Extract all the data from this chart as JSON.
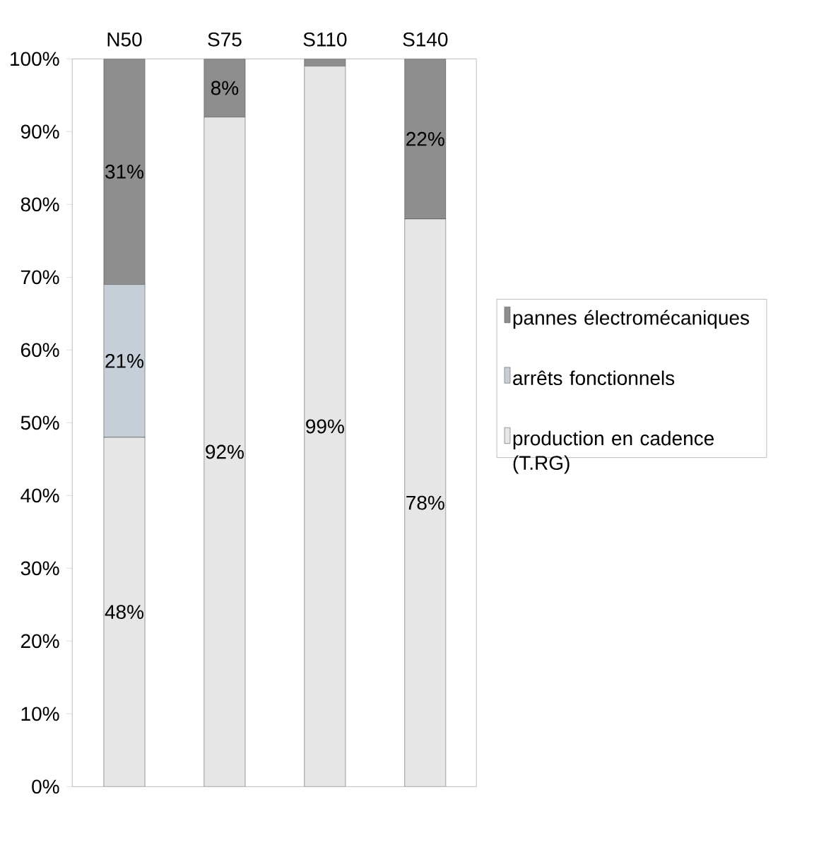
{
  "chart_data": {
    "type": "bar",
    "stacked": true,
    "categories": [
      "N50",
      "S75",
      "S110",
      "S140"
    ],
    "series": [
      {
        "name": "production en cadence (T.RG)",
        "color": "#e6e6e6",
        "values": [
          48,
          92,
          99,
          78
        ],
        "value_labels": [
          "48%",
          "92%",
          "99%",
          "78%"
        ]
      },
      {
        "name": "arrêts fonctionnels",
        "color": "#c6cfd8",
        "values": [
          21,
          0,
          0,
          0
        ],
        "value_labels": [
          "21%",
          null,
          null,
          null
        ]
      },
      {
        "name": "pannes électromécaniques",
        "color": "#8e8e8e",
        "values": [
          31,
          8,
          1,
          22
        ],
        "value_labels": [
          "31%",
          "8%",
          null,
          "22%"
        ]
      }
    ],
    "ylim": [
      0,
      100
    ],
    "yticks": [
      {
        "value": 0,
        "label": "0%"
      },
      {
        "value": 10,
        "label": "10%"
      },
      {
        "value": 20,
        "label": "20%"
      },
      {
        "value": 30,
        "label": "30%"
      },
      {
        "value": 40,
        "label": "40%"
      },
      {
        "value": 50,
        "label": "50%"
      },
      {
        "value": 60,
        "label": "60%"
      },
      {
        "value": 70,
        "label": "70%"
      },
      {
        "value": 80,
        "label": "80%"
      },
      {
        "value": 90,
        "label": "90%"
      },
      {
        "value": 100,
        "label": "100%"
      }
    ],
    "legend": "right",
    "grid": false
  }
}
